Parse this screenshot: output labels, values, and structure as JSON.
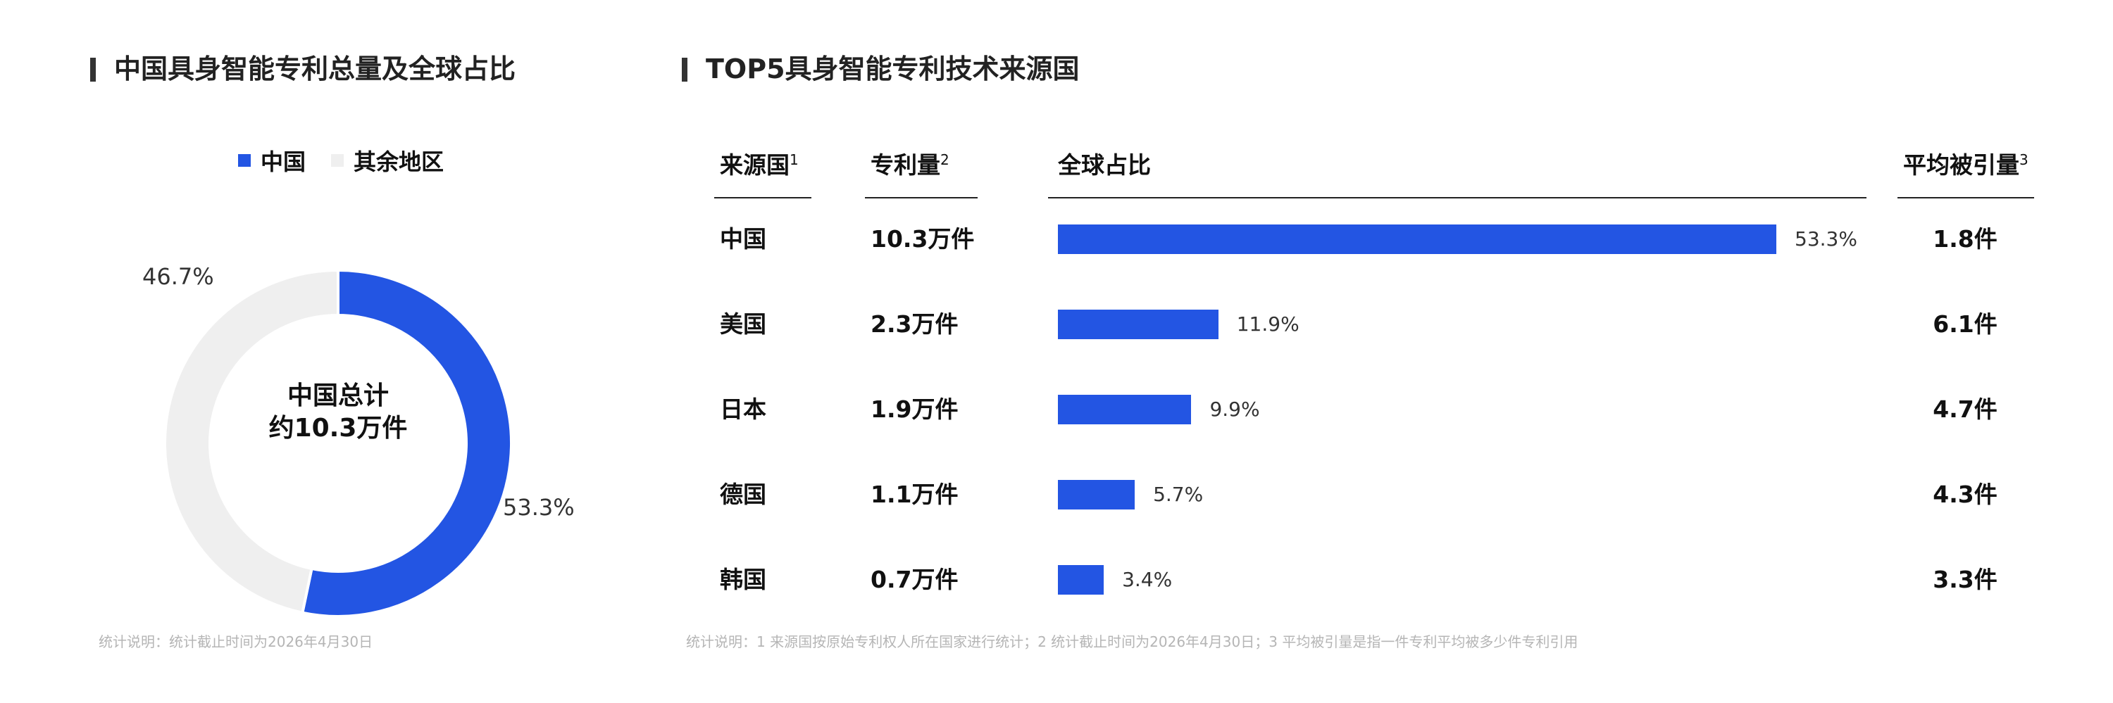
{
  "left_title": "中国具身智能专利总量及全球占比",
  "right_title": "TOP5具身智能专利技术来源国",
  "donut": {
    "legend": [
      {
        "label": "中国",
        "color": "#2355e3"
      },
      {
        "label": "其余地区",
        "color": "#efefef"
      }
    ],
    "center_line1": "中国总计",
    "center_line2": "约10.3万件",
    "china_label": "53.3%",
    "rest_label": "46.7%"
  },
  "table": {
    "headers": {
      "country": "来源国",
      "country_sup": "1",
      "patents": "专利量",
      "patents_sup": "2",
      "share": "全球占比",
      "cites": "平均被引量",
      "cites_sup": "3"
    },
    "bar_color": "#2355e3"
  },
  "chart_data": [
    {
      "type": "pie",
      "title": "中国具身智能专利总量及全球占比",
      "labels": [
        "中国",
        "其余地区"
      ],
      "values": [
        53.3,
        46.7
      ],
      "legend": "top",
      "colors": [
        "#2355e3",
        "#efefef"
      ]
    },
    {
      "type": "bar",
      "title": "TOP5具身智能专利技术来源国",
      "categories": [
        "中国",
        "美国",
        "日本",
        "德国",
        "韩国"
      ],
      "patents": [
        "10.3万件",
        "2.3万件",
        "1.9万件",
        "1.1万件",
        "0.7万件"
      ],
      "values": [
        53.3,
        11.9,
        9.9,
        5.7,
        3.4
      ],
      "value_labels": [
        "53.3%",
        "11.9%",
        "9.9%",
        "5.7%",
        "3.4%"
      ],
      "citations": [
        "1.8件",
        "6.1件",
        "4.7件",
        "4.3件",
        "3.3件"
      ],
      "orientation": "horizontal"
    }
  ],
  "footnote_left": "统计说明：统计截止时间为2026年4月30日",
  "footnote_right": "统计说明：1 来源国按原始专利权人所在国家进行统计；2 统计截止时间为2026年4月30日；3 平均被引量是指一件专利平均被多少件专利引用"
}
